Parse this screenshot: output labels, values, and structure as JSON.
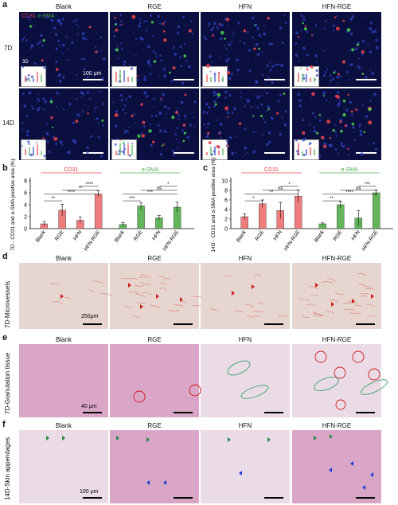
{
  "panels": {
    "a": "a",
    "b": "b",
    "c": "c",
    "d": "d",
    "e": "e",
    "f": "f"
  },
  "groups": [
    "Blank",
    "RGE",
    "HFN",
    "HFN-RGE"
  ],
  "panel_a": {
    "legend_cd31": "CD31",
    "legend_sma": "α-SMA",
    "row_7d": "7D",
    "row_14d": "14D",
    "inset_label": "3D",
    "scale": "100 μm"
  },
  "panel_d": {
    "row_label": "7D-Microvessels",
    "scale": "250μm"
  },
  "panel_e": {
    "row_label": "7D-Granulation tissue",
    "scale": "40 μm"
  },
  "panel_f": {
    "row_label": "14D-Skin appendages",
    "scale": "100 μm"
  },
  "colors": {
    "cd31": "#e8434a",
    "sma": "#4fae4c",
    "cd31_bar": "#f07d7d",
    "sma_bar": "#62b55b",
    "fluor_bg": "#0b0f3f",
    "he_bg": "#d9a6c7"
  },
  "chart_data": [
    {
      "type": "bar",
      "panel": "b",
      "ylabel": "7D - CD31 and α-SMA positive area (%)",
      "ylim": [
        0,
        8
      ],
      "yticks": [
        "0",
        "2",
        "4",
        "6",
        "8"
      ],
      "categories": [
        "Blank",
        "RGE",
        "HFN",
        "HFN-RGE"
      ],
      "series": [
        {
          "name": "CD31",
          "values": [
            0.8,
            3.1,
            1.4,
            5.8
          ],
          "errors": [
            0.4,
            1.0,
            0.5,
            0.5
          ]
        },
        {
          "name": "α-SMA",
          "values": [
            0.7,
            3.8,
            1.8,
            3.6
          ],
          "errors": [
            0.3,
            0.5,
            0.4,
            0.8
          ]
        }
      ],
      "significance": {
        "CD31": [
          {
            "pair": [
              "Blank",
              "RGE"
            ],
            "label": "**"
          },
          {
            "pair": [
              "Blank",
              "HFN-RGE"
            ],
            "label": "****"
          },
          {
            "pair": [
              "RGE",
              "HFN-RGE"
            ],
            "label": "**"
          },
          {
            "pair": [
              "HFN",
              "HFN-RGE"
            ],
            "label": "****"
          }
        ],
        "α-SMA": [
          {
            "pair": [
              "Blank",
              "RGE"
            ],
            "label": "***"
          },
          {
            "pair": [
              "Blank",
              "HFN-RGE"
            ],
            "label": "***"
          },
          {
            "pair": [
              "RGE",
              "HFN-RGE"
            ],
            "label": "ns"
          },
          {
            "pair": [
              "HFN",
              "HFN-RGE"
            ],
            "label": "*"
          }
        ]
      }
    },
    {
      "type": "bar",
      "panel": "c",
      "ylabel": "14D - CD31 and α-SMA positive area (%)",
      "ylim": [
        0,
        10
      ],
      "yticks": [
        "0",
        "2",
        "4",
        "6",
        "8",
        "10"
      ],
      "categories": [
        "Blank",
        "RGE",
        "HFN",
        "HFN-RGE"
      ],
      "series": [
        {
          "name": "CD31",
          "values": [
            2.5,
            5.2,
            3.8,
            6.8
          ],
          "errors": [
            0.6,
            0.8,
            1.7,
            1.3
          ]
        },
        {
          "name": "α-SMA",
          "values": [
            1.0,
            5.0,
            2.2,
            7.5
          ],
          "errors": [
            0.2,
            0.7,
            1.6,
            0.6
          ]
        }
      ],
      "significance": {
        "CD31": [
          {
            "pair": [
              "Blank",
              "RGE"
            ],
            "label": "*"
          },
          {
            "pair": [
              "Blank",
              "HFN-RGE"
            ],
            "label": "**"
          },
          {
            "pair": [
              "RGE",
              "HFN-RGE"
            ],
            "label": "ns"
          },
          {
            "pair": [
              "HFN",
              "HFN-RGE"
            ],
            "label": "*"
          }
        ],
        "α-SMA": [
          {
            "pair": [
              "Blank",
              "RGE"
            ],
            "label": "**"
          },
          {
            "pair": [
              "Blank",
              "HFN-RGE"
            ],
            "label": "****"
          },
          {
            "pair": [
              "RGE",
              "HFN-RGE"
            ],
            "label": "ns"
          },
          {
            "pair": [
              "HFN",
              "HFN-RGE"
            ],
            "label": "***"
          }
        ]
      }
    }
  ]
}
